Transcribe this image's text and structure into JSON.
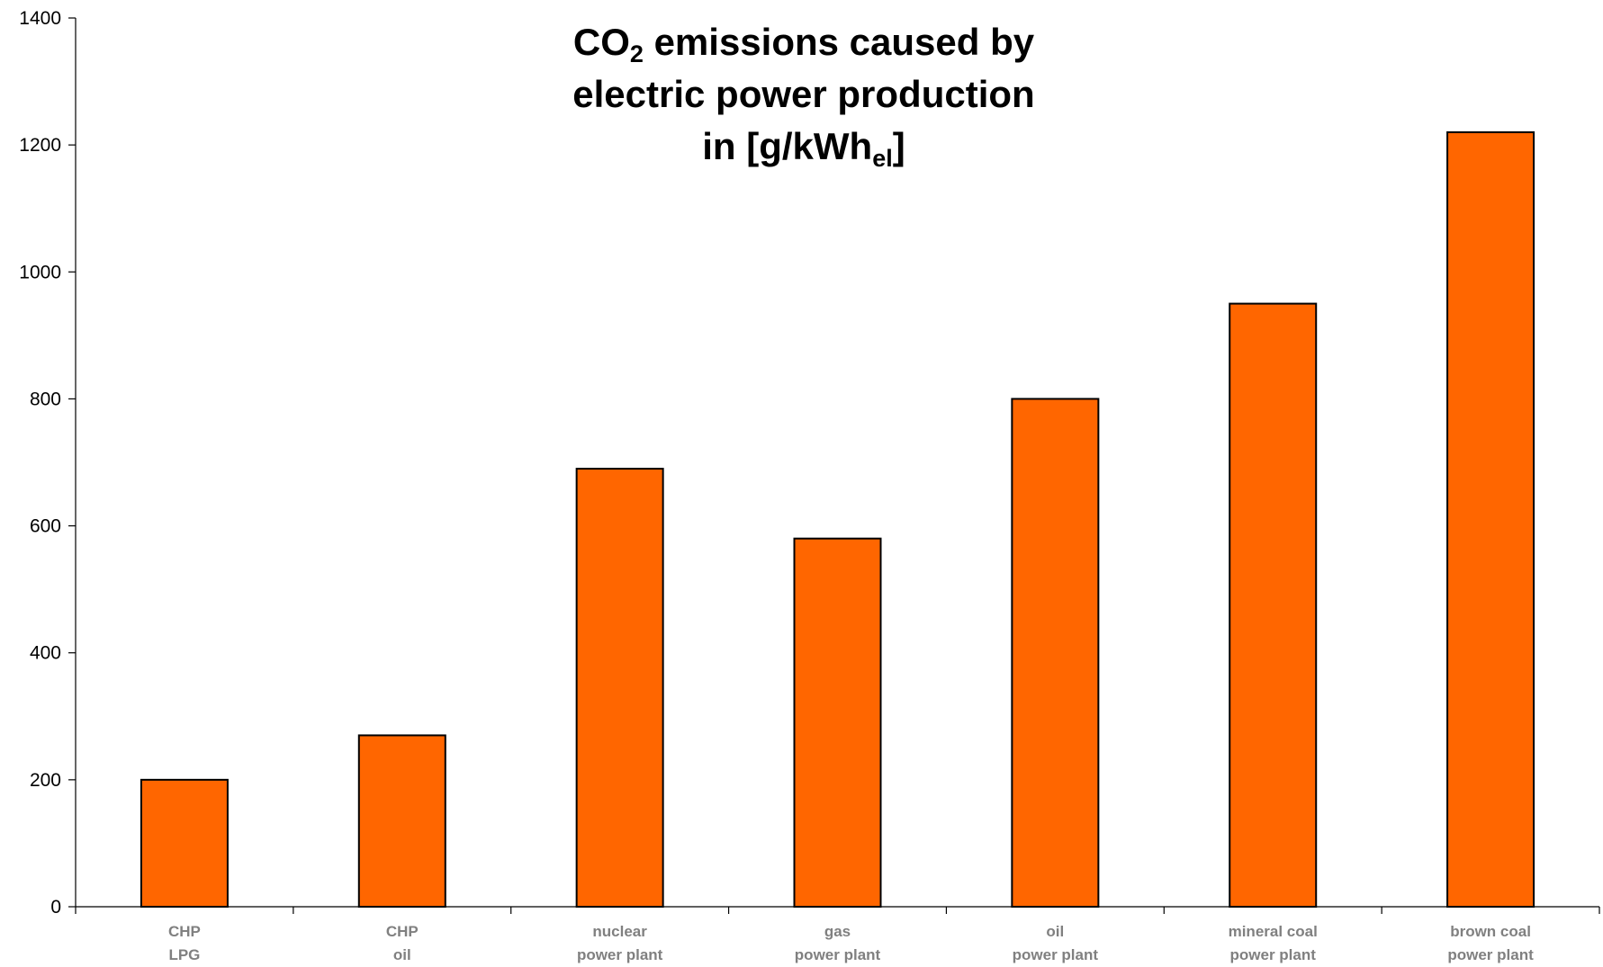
{
  "chart_data": {
    "type": "bar",
    "title_lines": [
      {
        "parts": [
          {
            "text": "CO"
          },
          {
            "text": "2",
            "sub": true
          },
          {
            "text": " emissions caused by"
          }
        ]
      },
      {
        "parts": [
          {
            "text": "electric power production"
          }
        ]
      },
      {
        "parts": [
          {
            "text": "in [g/kWh"
          },
          {
            "text": "el",
            "sub": true
          },
          {
            "text": "]"
          }
        ]
      }
    ],
    "categories": [
      [
        "CHP",
        "LPG"
      ],
      [
        "CHP",
        "oil"
      ],
      [
        "nuclear",
        "power plant"
      ],
      [
        "gas",
        "power plant"
      ],
      [
        "oil",
        "power plant"
      ],
      [
        "mineral coal",
        "power plant"
      ],
      [
        "brown coal",
        "power plant"
      ]
    ],
    "values": [
      200,
      270,
      690,
      580,
      800,
      950,
      1220
    ],
    "ylim": [
      0,
      1400
    ],
    "yticks": [
      0,
      200,
      400,
      600,
      800,
      1000,
      1200,
      1400
    ],
    "grid": false,
    "legend": "none",
    "bar_color": "#FF6600",
    "bar_stroke": "#000000",
    "xtick_color": "#808080"
  }
}
